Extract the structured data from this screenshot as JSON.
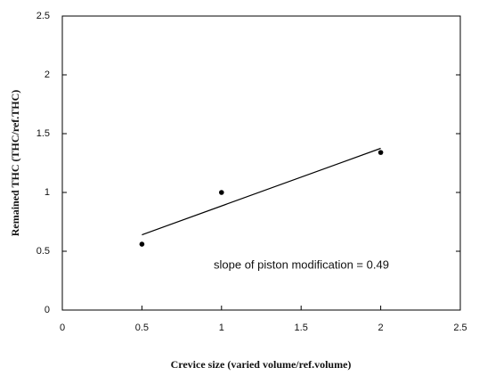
{
  "chart_data": {
    "type": "scatter",
    "xlabel": "Crevice size (varied volume/ref.volume)",
    "ylabel": "Remained THC (THC/ref.THC)",
    "annotation": "slope of piston modification = 0.49",
    "x": [
      0.5,
      1,
      2
    ],
    "values": [
      0.56,
      1.0,
      1.34
    ],
    "color": "#000000",
    "trendline": {
      "x": [
        0.5,
        2
      ],
      "values": [
        0.64,
        1.375
      ],
      "color": "#000000"
    },
    "xlim": [
      0,
      2.5
    ],
    "xticks": [
      0,
      0.5,
      1,
      1.5,
      2,
      2.5
    ],
    "ylim": [
      0,
      2.5
    ],
    "yticks": [
      0,
      0.5,
      1,
      1.5,
      2,
      2.5
    ],
    "grid": false
  }
}
